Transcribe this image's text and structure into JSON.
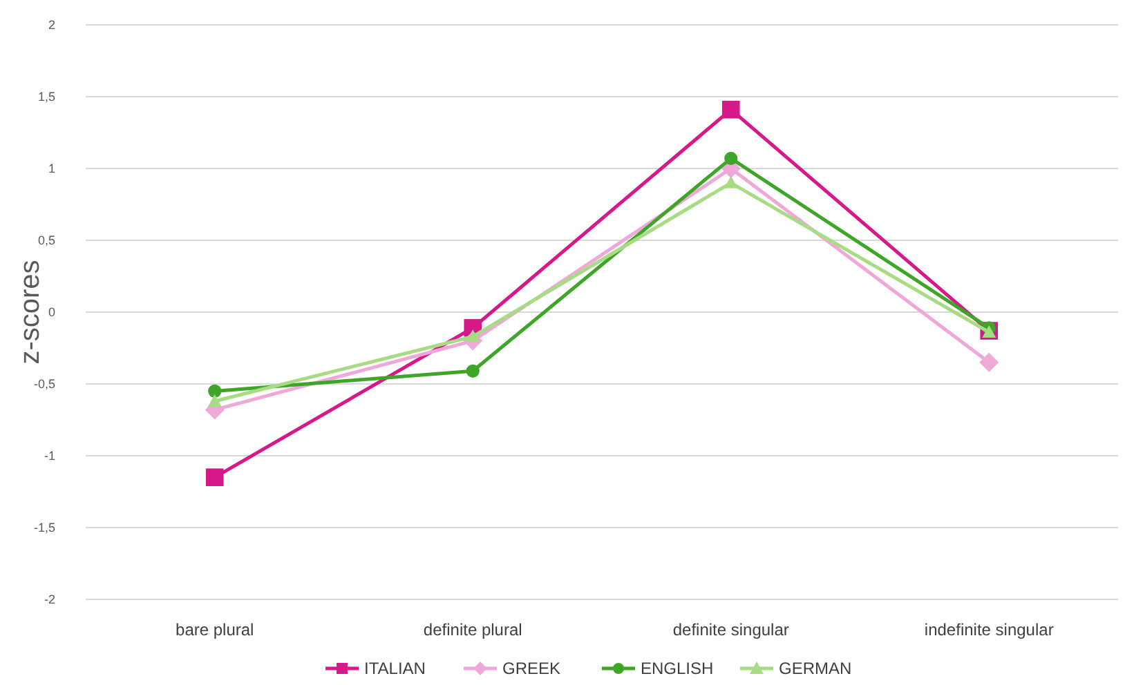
{
  "chart_data": {
    "type": "line",
    "ylabel": "z-scores",
    "categories": [
      "bare plural",
      "definite plural",
      "definite singular",
      "indefinite singular"
    ],
    "series": [
      {
        "name": "ITALIAN",
        "color": "#d6198a",
        "marker": "square",
        "values": [
          -1.15,
          -0.11,
          1.41,
          -0.13
        ]
      },
      {
        "name": "GREEK",
        "color": "#f0a8d8",
        "marker": "diamond",
        "values": [
          -0.68,
          -0.2,
          1.0,
          -0.35
        ]
      },
      {
        "name": "ENGLISH",
        "color": "#3fa528",
        "marker": "circle",
        "values": [
          -0.55,
          -0.41,
          1.07,
          -0.11
        ]
      },
      {
        "name": "GERMAN",
        "color": "#a8dc84",
        "marker": "triangle",
        "values": [
          -0.62,
          -0.17,
          0.9,
          -0.14
        ]
      }
    ],
    "ylim": [
      -2,
      2
    ],
    "yticks": [
      -2,
      {
        "value": -1.5,
        "label": "-1,5"
      },
      -1,
      {
        "value": -0.5,
        "label": "-0,5"
      },
      0,
      {
        "value": 0.5,
        "label": "0,5"
      },
      1,
      {
        "value": 1.5,
        "label": "1,5"
      },
      2
    ],
    "grid": "y",
    "legend": "bottom",
    "line_style": "solid"
  }
}
